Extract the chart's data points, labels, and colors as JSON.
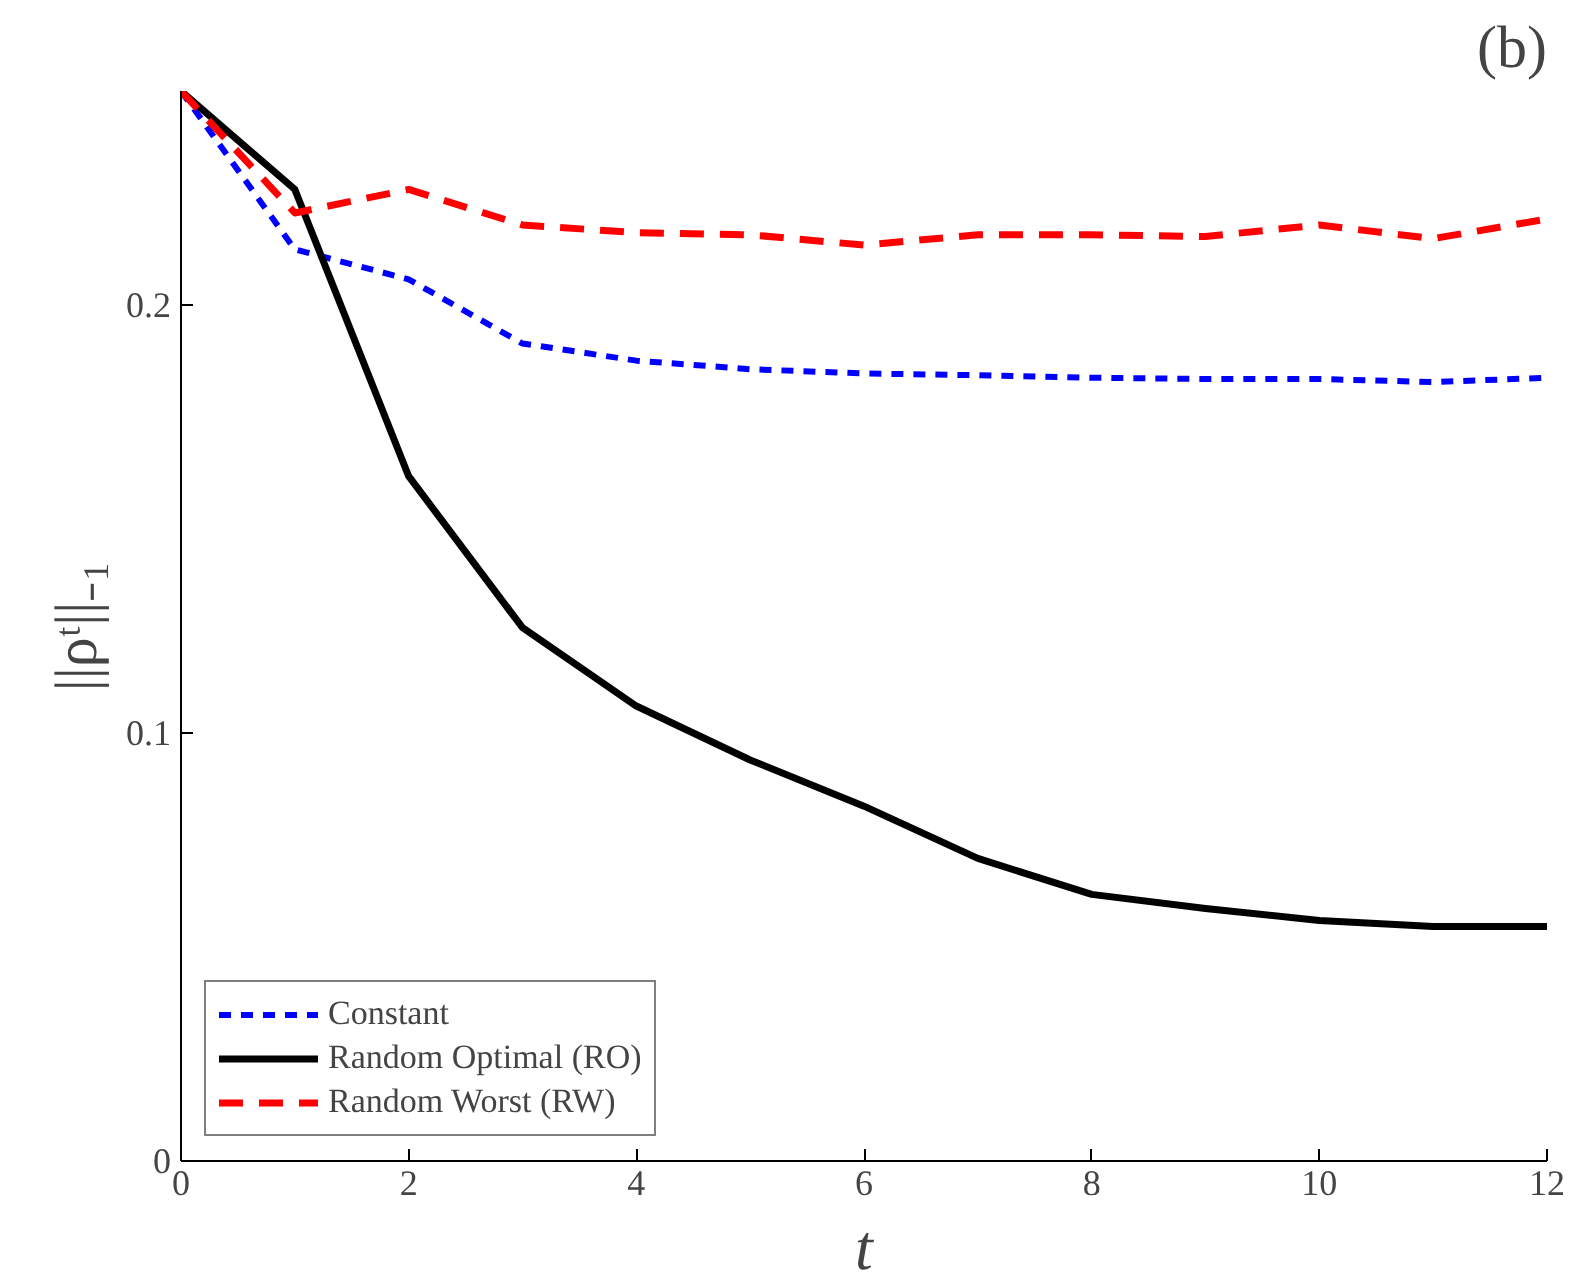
{
  "chart_data": {
    "type": "line",
    "title": "(b)",
    "xlabel": "t",
    "ylabel": "||ρᵗ||₋₁",
    "x": [
      0,
      1,
      2,
      3,
      4,
      5,
      6,
      7,
      8,
      9,
      10,
      11,
      12
    ],
    "xlim": [
      0,
      12
    ],
    "xticks": [
      0,
      2,
      4,
      6,
      8,
      10,
      12
    ],
    "ylim": [
      0,
      0.25
    ],
    "yticks": [
      0,
      0.1,
      0.2
    ],
    "grid": false,
    "legend": "bottom left",
    "marker": "none",
    "series": [
      {
        "name": "Constant",
        "color": "#0000ff",
        "line_style": "dotted",
        "values": [
          0.25,
          0.213,
          0.206,
          0.191,
          0.187,
          0.185,
          0.184,
          0.1836,
          0.183,
          0.1827,
          0.1827,
          0.182,
          0.183
        ]
      },
      {
        "name": "Random Optimal (RO)",
        "color": "#000000",
        "line_style": "solid",
        "values": [
          0.25,
          0.227,
          0.16,
          0.1246,
          0.1063,
          0.0937,
          0.0829,
          0.0707,
          0.0623,
          0.059,
          0.0562,
          0.0548,
          0.0548
        ]
      },
      {
        "name": "Random Worst (RW)",
        "color": "#ff0000",
        "line_style": "dashed",
        "values": [
          0.25,
          0.2215,
          0.227,
          0.2187,
          0.2169,
          0.2164,
          0.214,
          0.2164,
          0.2164,
          0.216,
          0.2187,
          0.2155,
          0.2201
        ]
      }
    ]
  }
}
